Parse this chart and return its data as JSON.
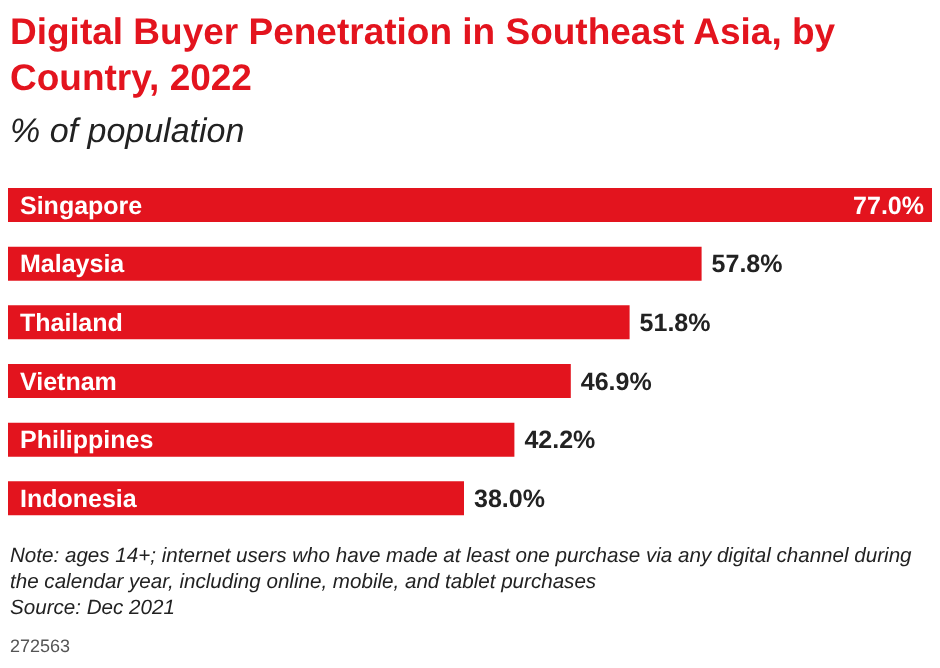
{
  "chart_data": {
    "type": "bar",
    "orientation": "horizontal",
    "title": "Digital Buyer Penetration in Southeast Asia, by Country, 2022",
    "subtitle": "% of population",
    "categories": [
      "Singapore",
      "Malaysia",
      "Thailand",
      "Vietnam",
      "Philippines",
      "Indonesia"
    ],
    "values": [
      77.0,
      57.8,
      51.8,
      46.9,
      42.2,
      38.0
    ],
    "value_labels": [
      "77.0%",
      "57.8%",
      "51.8%",
      "46.9%",
      "42.2%",
      "38.0%"
    ],
    "color": "#e3141e",
    "annotations": [
      "Note: ages 14+; internet users who have made at least one purchase via any digital channel during the calendar year, including online, mobile, and tablet purchases",
      "Source: Dec 2021",
      "272563"
    ]
  }
}
